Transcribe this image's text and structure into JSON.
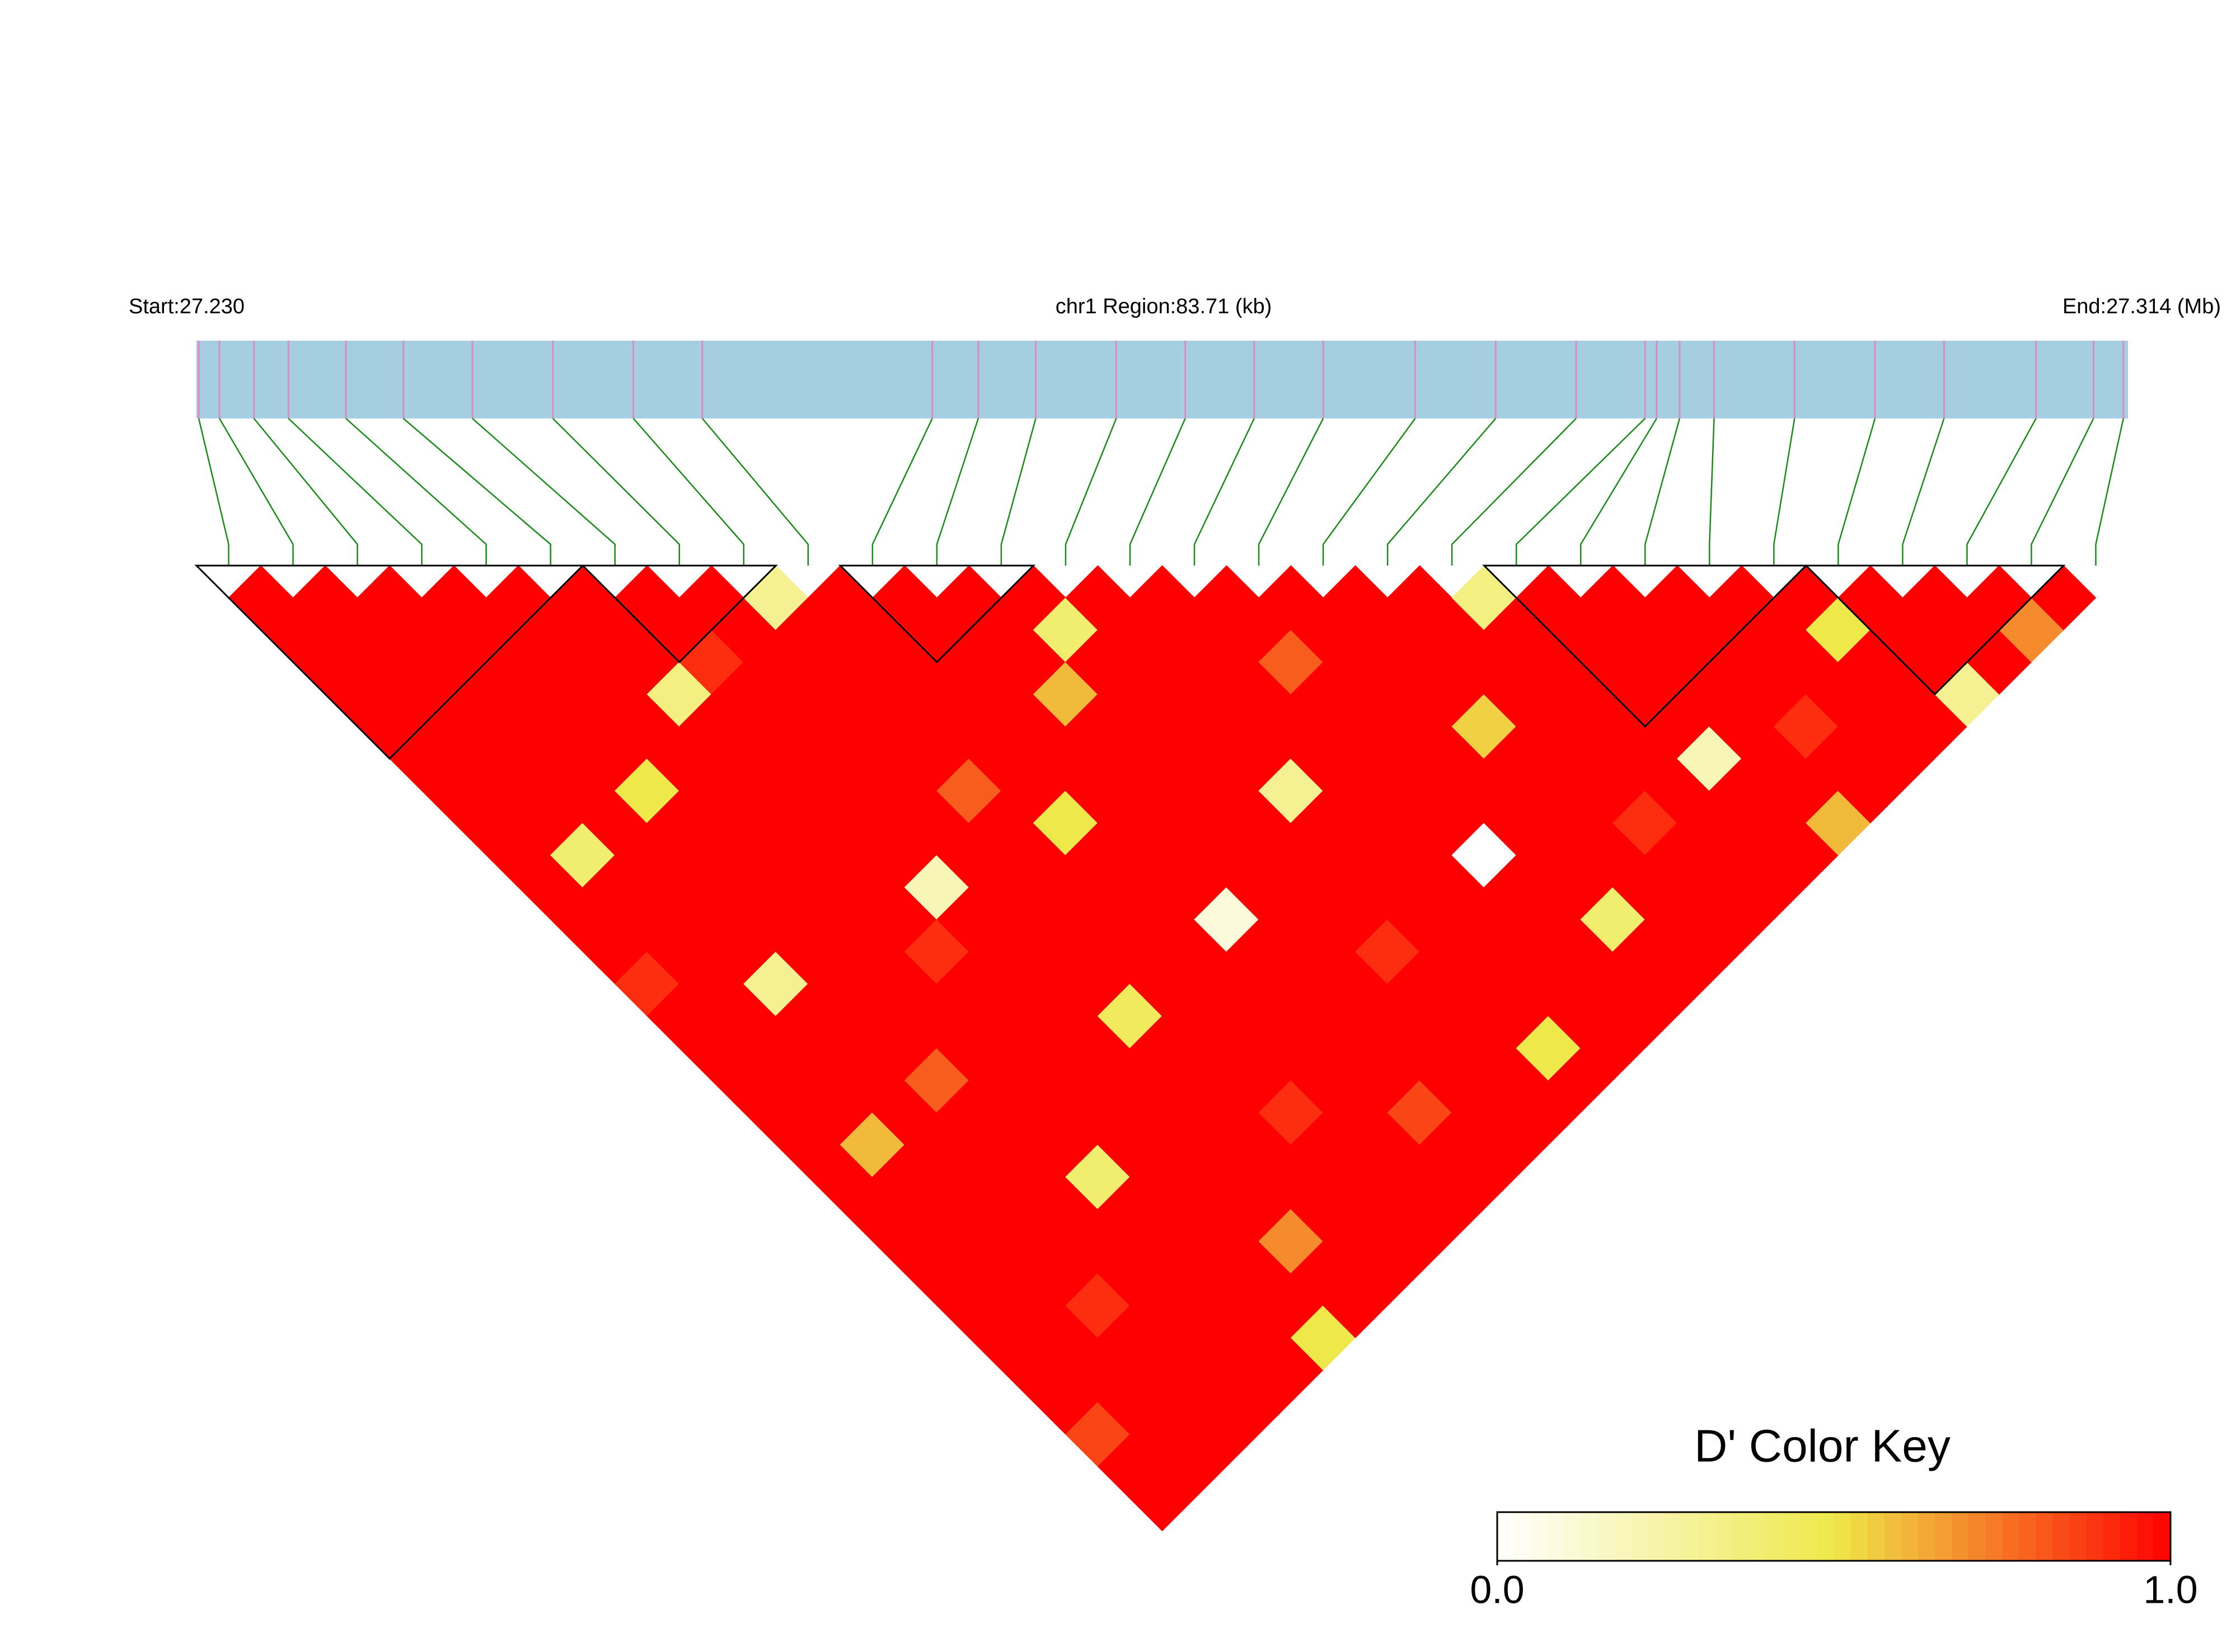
{
  "chart_data": {
    "type": "ld_heatmap",
    "start_label": "Start:27.230",
    "region_label": "chr1 Region:83.71 (kb)",
    "end_label": "End:27.314 (Mb)",
    "xlim": [
      27.23,
      27.314
    ],
    "positions": [
      27.2301,
      27.231,
      27.2325,
      27.234,
      27.2365,
      27.239,
      27.242,
      27.2455,
      27.249,
      27.252,
      27.262,
      27.264,
      27.2665,
      27.27,
      27.273,
      27.276,
      27.279,
      27.283,
      27.2865,
      27.29,
      27.293,
      27.2935,
      27.2945,
      27.296,
      27.2995,
      27.303,
      27.306,
      27.31,
      27.3125,
      27.3138
    ],
    "track_color": "#a6cee3",
    "marker_color": "#d98cc4",
    "connector_color": "#1a8a1a",
    "ld": [
      [
        1,
        1,
        1,
        1,
        1,
        1,
        1,
        1,
        1,
        1,
        1,
        1,
        0.9,
        1,
        1,
        1,
        1,
        1,
        1,
        1,
        1,
        1,
        1,
        1,
        1,
        1,
        0.85,
        1,
        1
      ],
      [
        1,
        1,
        1,
        1,
        1,
        1,
        1,
        1,
        0.4,
        1,
        1,
        1,
        1,
        1,
        1,
        1,
        1,
        0.6,
        1,
        1,
        1,
        1,
        1,
        1,
        1,
        1,
        1,
        1
      ],
      [
        1,
        1,
        1,
        1,
        1,
        1,
        1,
        1,
        1,
        1,
        1,
        1,
        0.3,
        1,
        1,
        1,
        1,
        1,
        1,
        1,
        1,
        1,
        0.9,
        1,
        1,
        1,
        1
      ],
      [
        1,
        1,
        1,
        1,
        1,
        1,
        0.5,
        1,
        1,
        1,
        1,
        1,
        1,
        1,
        1,
        0.8,
        1,
        1,
        1,
        1,
        1,
        1,
        1,
        1,
        1,
        1
      ],
      [
        1,
        1,
        1,
        1,
        1,
        1,
        1,
        1,
        1,
        1,
        1,
        1,
        1,
        1,
        1,
        1,
        1,
        1,
        0.4,
        1,
        1,
        1,
        1,
        1,
        1
      ],
      [
        1,
        1,
        1,
        0.35,
        1,
        1,
        1,
        1,
        1,
        1,
        1,
        0.9,
        1,
        1,
        1,
        1,
        1,
        1,
        1,
        1,
        1,
        1,
        1,
        0.5
      ],
      [
        1,
        1,
        0.9,
        1,
        1,
        1,
        1,
        1,
        1,
        0.2,
        1,
        1,
        1,
        1,
        1,
        1,
        1,
        1,
        1,
        1,
        0.7,
        1,
        1
      ],
      [
        1,
        1,
        1,
        1,
        1,
        1,
        1,
        1,
        1,
        1,
        1,
        1,
        1,
        0.45,
        1,
        1,
        1,
        1,
        1,
        1,
        1,
        1
      ],
      [
        0.3,
        1,
        1,
        1,
        1,
        1,
        0.8,
        1,
        1,
        1,
        1,
        1,
        1,
        1,
        1,
        1,
        0.9,
        1,
        1,
        1,
        1
      ],
      [
        1,
        1,
        1,
        1,
        1,
        1,
        1,
        0.5,
        1,
        1,
        1,
        1,
        1,
        1,
        1,
        1,
        1,
        1,
        1,
        1
      ],
      [
        1,
        1,
        1,
        1,
        1,
        1,
        1,
        1,
        1,
        1,
        0.1,
        1,
        1,
        1,
        1,
        1,
        0.85,
        1,
        1
      ],
      [
        1,
        1,
        1,
        0.6,
        1,
        1,
        1,
        1,
        1,
        1,
        1,
        1,
        1,
        1,
        1,
        1,
        1,
        1
      ],
      [
        1,
        0.4,
        1,
        1,
        1,
        1,
        1,
        1,
        1,
        1,
        1,
        0.9,
        1,
        1,
        1,
        1,
        1
      ],
      [
        1,
        1,
        1,
        1,
        1,
        1,
        0.3,
        1,
        1,
        1,
        1,
        1,
        1,
        1,
        0.5,
        1
      ],
      [
        1,
        1,
        1,
        1,
        1,
        1,
        1,
        1,
        1,
        1,
        1,
        1,
        1,
        1,
        1
      ],
      [
        1,
        1,
        0.8,
        1,
        1,
        1,
        1,
        1,
        0,
        1,
        1,
        1,
        1,
        1
      ],
      [
        1,
        1,
        1,
        1,
        1,
        1,
        1,
        1,
        1,
        1,
        0.4,
        1,
        1
      ],
      [
        1,
        1,
        1,
        1,
        0.55,
        1,
        1,
        1,
        1,
        1,
        1,
        1
      ],
      [
        1,
        1,
        1,
        1,
        1,
        1,
        1,
        0.9,
        1,
        1,
        1
      ],
      [
        0.35,
        1,
        1,
        1,
        1,
        1,
        1,
        1,
        1,
        1
      ],
      [
        1,
        1,
        1,
        1,
        1,
        0.2,
        1,
        1,
        1
      ],
      [
        1,
        1,
        1,
        1,
        1,
        1,
        1,
        0.6
      ],
      [
        1,
        1,
        1,
        1,
        0.9,
        1,
        1
      ],
      [
        1,
        1,
        1,
        1,
        1,
        1
      ],
      [
        1,
        0.5,
        1,
        1,
        1
      ],
      [
        1,
        1,
        1,
        0.3
      ],
      [
        1,
        1,
        1
      ],
      [
        1,
        0.7
      ],
      [
        1
      ]
    ],
    "blocks": [
      [
        0,
        5
      ],
      [
        6,
        8
      ],
      [
        10,
        12
      ],
      [
        20,
        24
      ],
      [
        25,
        28
      ]
    ],
    "legend_title": "D' Color Key",
    "legend_ticks": [
      {
        "value": 0,
        "label": "0.0"
      },
      {
        "value": 1,
        "label": "1.0"
      }
    ]
  }
}
